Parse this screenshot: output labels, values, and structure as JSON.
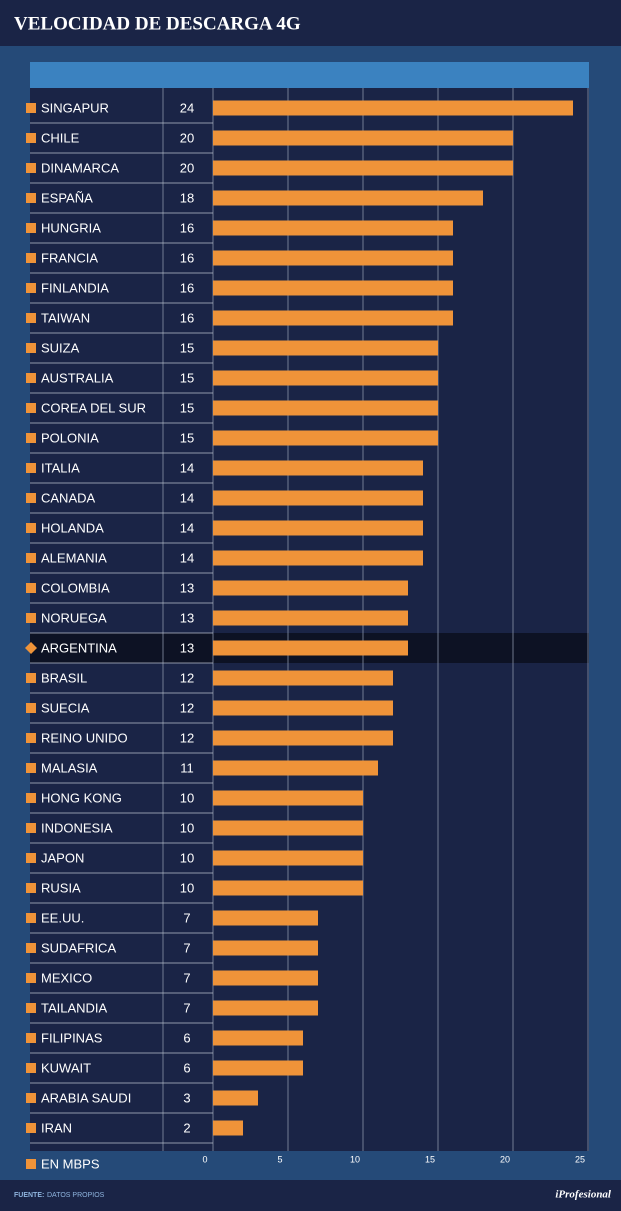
{
  "chart_data": {
    "type": "bar",
    "orientation": "horizontal",
    "title": "VELOCIDAD DE DESCARGA 4G",
    "categories": [
      "SINGAPUR",
      "CHILE",
      "DINAMARCA",
      "ESPAÑA",
      "HUNGRIA",
      "FRANCIA",
      "FINLANDIA",
      "TAIWAN",
      "SUIZA",
      "AUSTRALIA",
      "COREA DEL SUR",
      "POLONIA",
      "ITALIA",
      "CANADA",
      "HOLANDA",
      "ALEMANIA",
      "COLOMBIA",
      "NORUEGA",
      "ARGENTINA",
      "BRASIL",
      "SUECIA",
      "REINO UNIDO",
      "MALASIA",
      "HONG KONG",
      "INDONESIA",
      "JAPON",
      "RUSIA",
      "EE.UU.",
      "SUDAFRICA",
      "MEXICO",
      "TAILANDIA",
      "FILIPINAS",
      "KUWAIT",
      "ARABIA SAUDI",
      "IRAN"
    ],
    "values": [
      24,
      20,
      20,
      18,
      16,
      16,
      16,
      16,
      15,
      15,
      15,
      15,
      14,
      14,
      14,
      14,
      13,
      13,
      13,
      12,
      12,
      12,
      11,
      10,
      10,
      10,
      10,
      7,
      7,
      7,
      7,
      6,
      6,
      3,
      2
    ],
    "color": "#ef9339",
    "highlight_category": "ARGENTINA",
    "xlim": [
      0,
      25
    ],
    "xticks": [
      0,
      5,
      10,
      15,
      20,
      25
    ],
    "grid": true,
    "note": "EN MBPS"
  },
  "footer": {
    "source_label": "FUENTE:",
    "source": "DATOS PROPIOS",
    "brand": "iProfesional"
  }
}
